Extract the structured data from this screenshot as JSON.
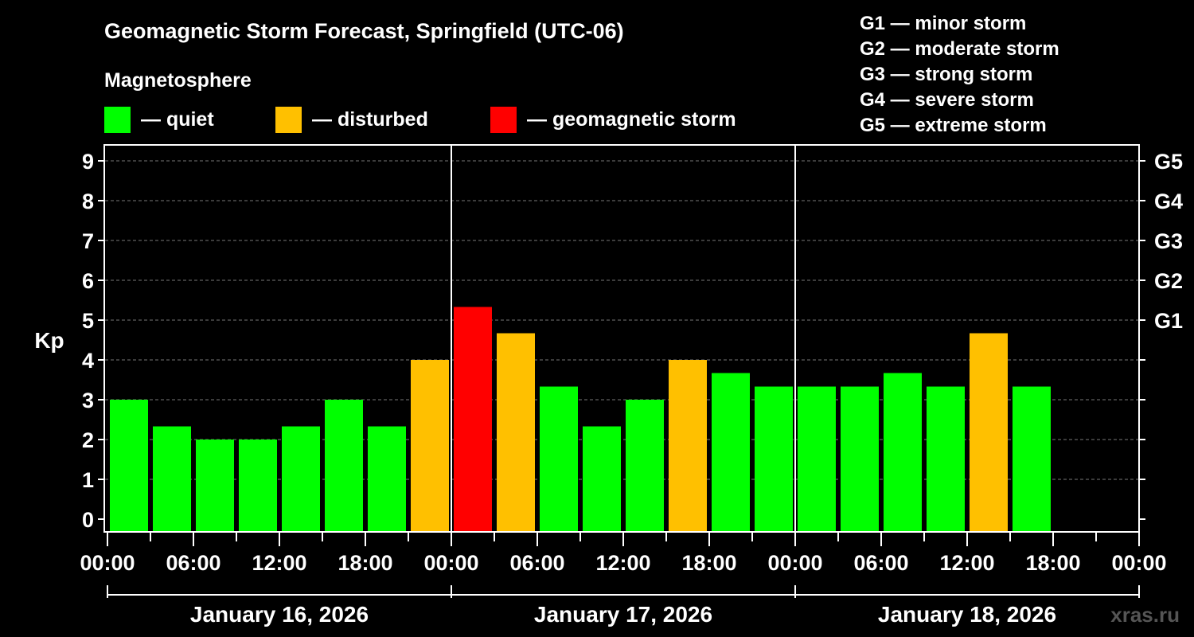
{
  "chart_data": {
    "type": "bar",
    "title": "Geomagnetic Storm Forecast, Springfield (UTC-06)",
    "ylabel": "Kp",
    "ylim": [
      0,
      9
    ],
    "y_ticks": [
      "0",
      "1",
      "2",
      "3",
      "4",
      "5",
      "6",
      "7",
      "8",
      "9"
    ],
    "right_ticks": [
      {
        "kp": 5,
        "label": "G1"
      },
      {
        "kp": 6,
        "label": "G2"
      },
      {
        "kp": 7,
        "label": "G3"
      },
      {
        "kp": 8,
        "label": "G4"
      },
      {
        "kp": 9,
        "label": "G5"
      }
    ],
    "grid": true,
    "x_tick_labels": [
      "00:00",
      "06:00",
      "12:00",
      "18:00",
      "00:00",
      "06:00",
      "12:00",
      "18:00",
      "00:00",
      "06:00",
      "12:00",
      "18:00",
      "00:00"
    ],
    "days": [
      "January 16, 2026",
      "January 17, 2026",
      "January 18, 2026"
    ],
    "bar_interval_hours": 3,
    "bars": [
      {
        "start": "2026-01-16 00:00",
        "kp": 3.0,
        "level": "quiet"
      },
      {
        "start": "2026-01-16 03:00",
        "kp": 2.33,
        "level": "quiet"
      },
      {
        "start": "2026-01-16 06:00",
        "kp": 2.0,
        "level": "quiet"
      },
      {
        "start": "2026-01-16 09:00",
        "kp": 2.0,
        "level": "quiet"
      },
      {
        "start": "2026-01-16 12:00",
        "kp": 2.33,
        "level": "quiet"
      },
      {
        "start": "2026-01-16 15:00",
        "kp": 3.0,
        "level": "quiet"
      },
      {
        "start": "2026-01-16 18:00",
        "kp": 2.33,
        "level": "quiet"
      },
      {
        "start": "2026-01-16 21:00",
        "kp": 4.0,
        "level": "disturbed"
      },
      {
        "start": "2026-01-17 00:00",
        "kp": 5.33,
        "level": "storm"
      },
      {
        "start": "2026-01-17 03:00",
        "kp": 4.67,
        "level": "disturbed"
      },
      {
        "start": "2026-01-17 06:00",
        "kp": 3.33,
        "level": "quiet"
      },
      {
        "start": "2026-01-17 09:00",
        "kp": 2.33,
        "level": "quiet"
      },
      {
        "start": "2026-01-17 12:00",
        "kp": 3.0,
        "level": "quiet"
      },
      {
        "start": "2026-01-17 15:00",
        "kp": 4.0,
        "level": "disturbed"
      },
      {
        "start": "2026-01-17 18:00",
        "kp": 3.67,
        "level": "quiet"
      },
      {
        "start": "2026-01-17 21:00",
        "kp": 3.33,
        "level": "quiet"
      },
      {
        "start": "2026-01-18 00:00",
        "kp": 3.33,
        "level": "quiet"
      },
      {
        "start": "2026-01-18 03:00",
        "kp": 3.33,
        "level": "quiet"
      },
      {
        "start": "2026-01-18 06:00",
        "kp": 3.67,
        "level": "quiet"
      },
      {
        "start": "2026-01-18 09:00",
        "kp": 3.33,
        "level": "quiet"
      },
      {
        "start": "2026-01-18 12:00",
        "kp": 4.67,
        "level": "disturbed"
      },
      {
        "start": "2026-01-18 15:00",
        "kp": 3.33,
        "level": "quiet"
      }
    ],
    "legend": {
      "heading": "Magnetosphere",
      "items": [
        {
          "key": "quiet",
          "label": "— quiet",
          "color": "#00ff00"
        },
        {
          "key": "disturbed",
          "label": "— disturbed",
          "color": "#ffc000"
        },
        {
          "key": "storm",
          "label": "— geomagnetic storm",
          "color": "#ff0000"
        }
      ]
    },
    "g_scale": [
      "G1 — minor storm",
      "G2 — moderate storm",
      "G3 — strong storm",
      "G4 — severe storm",
      "G5 — extreme storm"
    ],
    "watermark": "xras.ru"
  }
}
